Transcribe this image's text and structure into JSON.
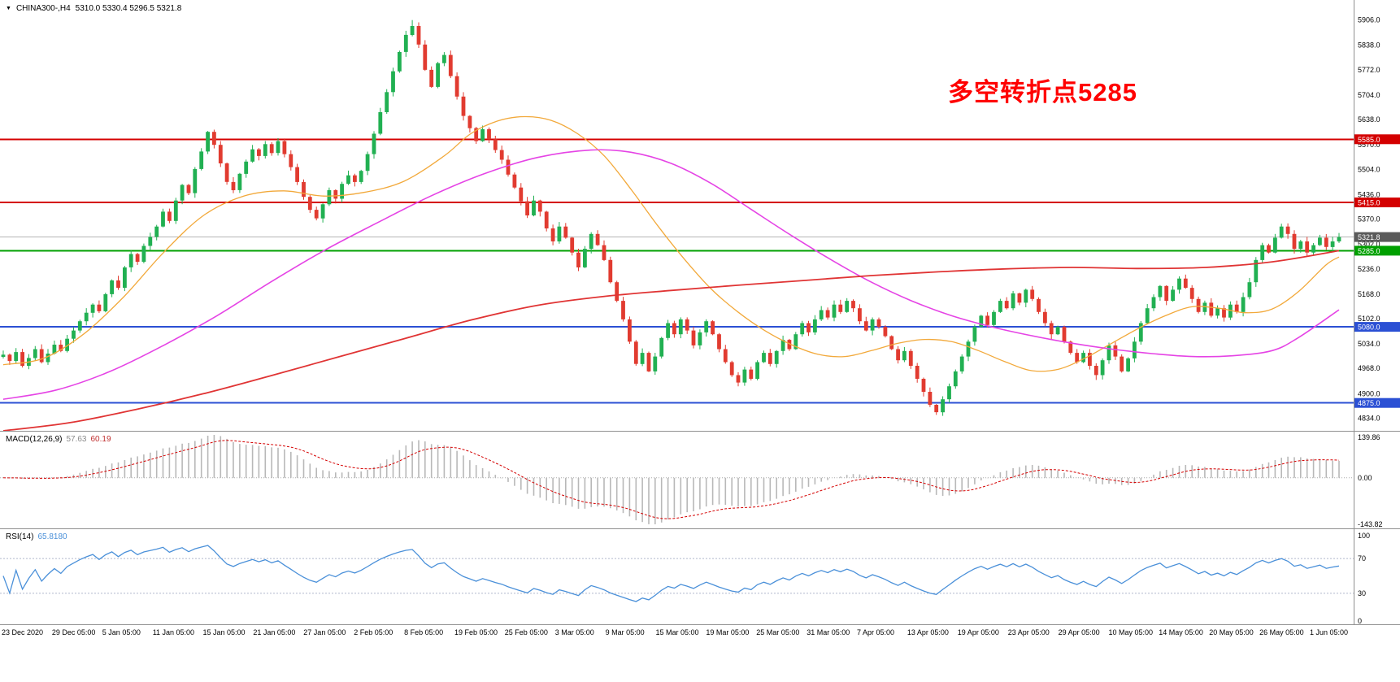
{
  "header": {
    "collapse_icon": "▼",
    "symbol": "CHINA300-,H4",
    "ohlc": "5310.0 5330.4 5296.5 5321.8"
  },
  "annotation": {
    "text": "多空转折点5285",
    "color": "#ff0000"
  },
  "macd_panel": {
    "name": "MACD(12,26,9)",
    "value_main": "57.63",
    "value_signal": "60.19",
    "axis_labels": [
      "139.86",
      "0.00",
      "-143.82"
    ]
  },
  "rsi_panel": {
    "name": "RSI(14)",
    "value": "65.8180",
    "axis_labels": [
      "100",
      "70",
      "30",
      "0"
    ]
  },
  "price_axis": {
    "labels": [
      "5906.0",
      "5838.0",
      "5772.0",
      "5704.0",
      "5638.0",
      "5570.0",
      "5504.0",
      "5436.0",
      "5370.0",
      "5302.0",
      "5236.0",
      "5168.0",
      "5102.0",
      "5034.0",
      "4968.0",
      "4900.0",
      "4834.0"
    ],
    "badges": [
      {
        "text": "5585.0",
        "price": 5585.0,
        "color": "#d40000"
      },
      {
        "text": "5415.0",
        "price": 5415.0,
        "color": "#d40000"
      },
      {
        "text": "5321.8",
        "price": 5321.8,
        "color": "#5a5a5a"
      },
      {
        "text": "5285.0",
        "price": 5285.0,
        "color": "#00a000"
      },
      {
        "text": "5080.0",
        "price": 5080.0,
        "color": "#2b50d4"
      },
      {
        "text": "4875.0",
        "price": 4875.0,
        "color": "#2b50d4"
      }
    ]
  },
  "time_axis": {
    "labels": [
      "23 Dec 2020",
      "29 Dec 05:00",
      "5 Jan 05:00",
      "11 Jan 05:00",
      "15 Jan 05:00",
      "21 Jan 05:00",
      "27 Jan 05:00",
      "2 Feb 05:00",
      "8 Feb 05:00",
      "19 Feb 05:00",
      "25 Feb 05:00",
      "3 Mar 05:00",
      "9 Mar 05:00",
      "15 Mar 05:00",
      "19 Mar 05:00",
      "25 Mar 05:00",
      "31 Mar 05:00",
      "7 Apr 05:00",
      "13 Apr 05:00",
      "19 Apr 05:00",
      "23 Apr 05:00",
      "29 Apr 05:00",
      "10 May 05:00",
      "14 May 05:00",
      "20 May 05:00",
      "26 May 05:00",
      "1 Jun 05:00"
    ]
  },
  "colors": {
    "background": "#ffffff",
    "bull": "#21b052",
    "bear": "#e13b30",
    "macd_hist": "#b8b8b8",
    "macd_signal": "#d40000",
    "rsi_line": "#4a90d9",
    "rsi_levels": "#b0b8cc",
    "separator": "#909090",
    "axis_text": "#000000",
    "price_line": "#b4b4b4"
  },
  "chart_data": {
    "type": "candlestick",
    "symbol": "CHINA300-",
    "timeframe": "H4",
    "title": "CHINA300- H4 with MACD(12,26,9) and RSI(14)",
    "current_bar": {
      "open": 5310.0,
      "high": 5330.4,
      "low": 5296.5,
      "close": 5321.8
    },
    "price_ylim": [
      4800,
      5960
    ],
    "extremes": {
      "high": 5906.0,
      "low": 4843.0
    },
    "closes": [
      5005,
      4988,
      5012,
      4975,
      4996,
      5020,
      4985,
      5008,
      5032,
      5015,
      5048,
      5070,
      5095,
      5118,
      5140,
      5122,
      5168,
      5205,
      5185,
      5240,
      5276,
      5255,
      5298,
      5322,
      5350,
      5390,
      5365,
      5420,
      5462,
      5440,
      5505,
      5552,
      5605,
      5570,
      5520,
      5470,
      5448,
      5492,
      5525,
      5558,
      5540,
      5572,
      5548,
      5580,
      5545,
      5510,
      5470,
      5430,
      5395,
      5372,
      5410,
      5448,
      5425,
      5465,
      5488,
      5470,
      5500,
      5545,
      5600,
      5658,
      5712,
      5768,
      5820,
      5866,
      5890,
      5840,
      5772,
      5726,
      5790,
      5812,
      5755,
      5700,
      5648,
      5615,
      5580,
      5612,
      5585,
      5556,
      5530,
      5490,
      5455,
      5418,
      5380,
      5420,
      5390,
      5345,
      5310,
      5350,
      5320,
      5280,
      5240,
      5290,
      5330,
      5300,
      5260,
      5200,
      5150,
      5100,
      5040,
      4980,
      5010,
      4960,
      5000,
      5050,
      5090,
      5060,
      5100,
      5070,
      5030,
      5065,
      5095,
      5060,
      5020,
      4985,
      4950,
      4930,
      4965,
      4940,
      4985,
      5010,
      4980,
      5015,
      5045,
      5020,
      5060,
      5090,
      5065,
      5100,
      5125,
      5105,
      5140,
      5120,
      5150,
      5130,
      5095,
      5070,
      5100,
      5080,
      5055,
      5020,
      4990,
      5015,
      4975,
      4940,
      4905,
      4870,
      4850,
      4885,
      4920,
      4960,
      5000,
      5040,
      5080,
      5110,
      5085,
      5120,
      5150,
      5130,
      5170,
      5145,
      5180,
      5155,
      5120,
      5090,
      5060,
      5080,
      5040,
      5010,
      4985,
      5010,
      4975,
      4950,
      4990,
      5030,
      5000,
      4960,
      4995,
      5040,
      5090,
      5130,
      5160,
      5190,
      5150,
      5180,
      5210,
      5185,
      5155,
      5120,
      5145,
      5110,
      5130,
      5105,
      5140,
      5120,
      5160,
      5200,
      5260,
      5300,
      5280,
      5320,
      5350,
      5330,
      5290,
      5310,
      5280,
      5300,
      5320,
      5295,
      5310,
      5321.8
    ],
    "horizontal_lines": [
      {
        "price": 5585.0,
        "color": "#d40000",
        "width": 2
      },
      {
        "price": 5415.0,
        "color": "#d40000",
        "width": 2
      },
      {
        "price": 5321.8,
        "color": "#b4b4b4",
        "width": 1
      },
      {
        "price": 5285.0,
        "color": "#00a000",
        "width": 2
      },
      {
        "price": 5080.0,
        "color": "#2b50d4",
        "width": 2
      },
      {
        "price": 4875.0,
        "color": "#2b50d4",
        "width": 2
      }
    ],
    "moving_averages": [
      {
        "name": "ma-fast",
        "color": "#f2a93b",
        "width": 1.3,
        "points": [
          [
            0,
            4978
          ],
          [
            0.03,
            4995
          ],
          [
            0.06,
            5060
          ],
          [
            0.09,
            5160
          ],
          [
            0.12,
            5280
          ],
          [
            0.15,
            5380
          ],
          [
            0.18,
            5432
          ],
          [
            0.21,
            5446
          ],
          [
            0.24,
            5432
          ],
          [
            0.27,
            5442
          ],
          [
            0.3,
            5472
          ],
          [
            0.33,
            5540
          ],
          [
            0.35,
            5600
          ],
          [
            0.37,
            5634
          ],
          [
            0.39,
            5646
          ],
          [
            0.41,
            5636
          ],
          [
            0.43,
            5600
          ],
          [
            0.45,
            5540
          ],
          [
            0.47,
            5450
          ],
          [
            0.49,
            5352
          ],
          [
            0.51,
            5262
          ],
          [
            0.53,
            5182
          ],
          [
            0.55,
            5120
          ],
          [
            0.57,
            5070
          ],
          [
            0.59,
            5032
          ],
          [
            0.61,
            5006
          ],
          [
            0.63,
            5000
          ],
          [
            0.65,
            5016
          ],
          [
            0.67,
            5036
          ],
          [
            0.69,
            5046
          ],
          [
            0.71,
            5040
          ],
          [
            0.73,
            5016
          ],
          [
            0.75,
            4986
          ],
          [
            0.77,
            4962
          ],
          [
            0.79,
            4966
          ],
          [
            0.81,
            4996
          ],
          [
            0.83,
            5036
          ],
          [
            0.85,
            5076
          ],
          [
            0.87,
            5110
          ],
          [
            0.89,
            5134
          ],
          [
            0.91,
            5130
          ],
          [
            0.93,
            5118
          ],
          [
            0.95,
            5128
          ],
          [
            0.97,
            5176
          ],
          [
            0.99,
            5246
          ],
          [
            1,
            5268
          ]
        ]
      },
      {
        "name": "ma-mid",
        "color": "#e544e5",
        "width": 1.6,
        "points": [
          [
            0,
            4885
          ],
          [
            0.04,
            4910
          ],
          [
            0.08,
            4960
          ],
          [
            0.12,
            5030
          ],
          [
            0.16,
            5110
          ],
          [
            0.2,
            5200
          ],
          [
            0.24,
            5285
          ],
          [
            0.28,
            5360
          ],
          [
            0.32,
            5432
          ],
          [
            0.36,
            5492
          ],
          [
            0.4,
            5536
          ],
          [
            0.44,
            5556
          ],
          [
            0.47,
            5550
          ],
          [
            0.5,
            5520
          ],
          [
            0.53,
            5466
          ],
          [
            0.56,
            5396
          ],
          [
            0.59,
            5326
          ],
          [
            0.62,
            5260
          ],
          [
            0.65,
            5200
          ],
          [
            0.68,
            5150
          ],
          [
            0.71,
            5110
          ],
          [
            0.74,
            5080
          ],
          [
            0.77,
            5056
          ],
          [
            0.8,
            5036
          ],
          [
            0.83,
            5020
          ],
          [
            0.86,
            5008
          ],
          [
            0.89,
            5000
          ],
          [
            0.92,
            5002
          ],
          [
            0.95,
            5016
          ],
          [
            0.97,
            5052
          ],
          [
            1,
            5126
          ]
        ]
      },
      {
        "name": "ma-slow",
        "color": "#e03434",
        "width": 1.8,
        "points": [
          [
            0,
            4800
          ],
          [
            0.05,
            4822
          ],
          [
            0.1,
            4858
          ],
          [
            0.15,
            4900
          ],
          [
            0.2,
            4948
          ],
          [
            0.25,
            4998
          ],
          [
            0.3,
            5048
          ],
          [
            0.35,
            5098
          ],
          [
            0.4,
            5138
          ],
          [
            0.45,
            5162
          ],
          [
            0.5,
            5178
          ],
          [
            0.55,
            5192
          ],
          [
            0.6,
            5205
          ],
          [
            0.65,
            5218
          ],
          [
            0.7,
            5228
          ],
          [
            0.75,
            5236
          ],
          [
            0.8,
            5240
          ],
          [
            0.85,
            5237
          ],
          [
            0.9,
            5240
          ],
          [
            0.95,
            5255
          ],
          [
            1,
            5285
          ]
        ]
      }
    ],
    "indicators": {
      "macd": {
        "fast": 12,
        "slow": 26,
        "signal": 9,
        "main_value": 57.63,
        "signal_value": 60.19
      },
      "rsi": {
        "period": 14,
        "value": 65.818,
        "levels": [
          70,
          30
        ]
      }
    }
  }
}
